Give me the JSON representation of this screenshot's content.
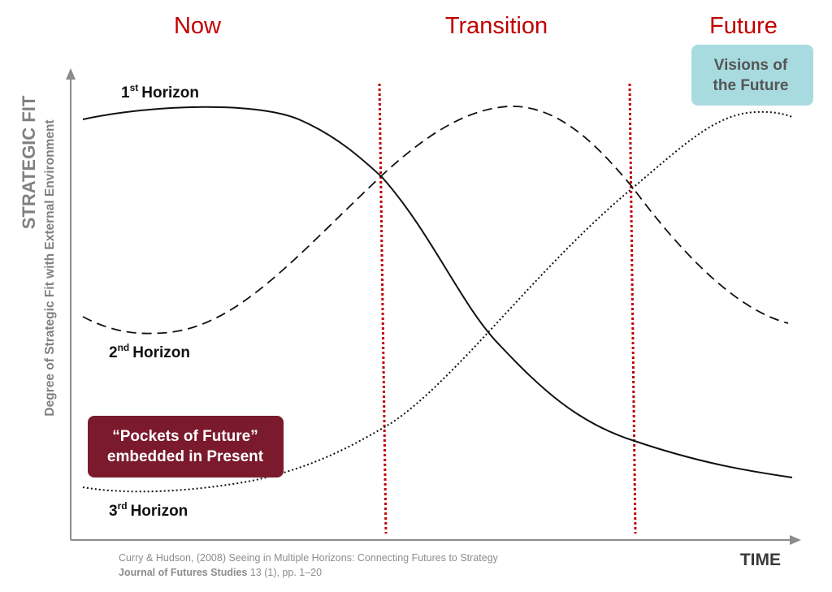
{
  "phases": {
    "now": "Now",
    "transition": "Transition",
    "future": "Future"
  },
  "horizons": {
    "h1": {
      "num": "1",
      "sup": "st",
      "label": "Horizon"
    },
    "h2": {
      "num": "2",
      "sup": "nd",
      "label": "Horizon"
    },
    "h3": {
      "num": "3",
      "sup": "rd",
      "label": "Horizon"
    }
  },
  "y_axis": {
    "title": "STRATEGIC FIT",
    "subtitle": "Degree of Strategic Fit with External Environment"
  },
  "x_axis": {
    "title": "TIME"
  },
  "callouts": {
    "pockets": {
      "line1": "“Pockets of Future”",
      "line2": "embedded in Present",
      "fill": "#7b1a2c"
    },
    "visions": {
      "line1": "Visions of",
      "line2": "the Future",
      "fill": "#a8dbe0"
    }
  },
  "citation": {
    "line1": "Curry & Hudson, (2008) Seeing in Multiple Horizons: Connecting Futures to Strategy",
    "journal": "Journal of Futures Studies",
    "line2_rest": " 13 (1), pp. 1–20"
  },
  "colors": {
    "accent_red": "#c00000",
    "axis": "#8c8c8c",
    "curve": "#111111"
  }
}
